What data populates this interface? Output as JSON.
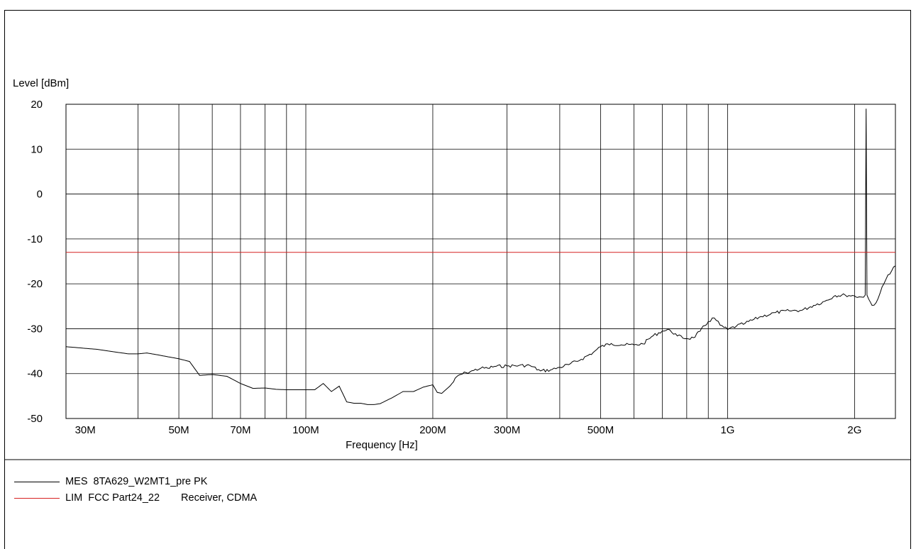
{
  "chart_data": {
    "type": "line",
    "ylabel": "Level [dBm]",
    "xlabel": "Frequency [Hz]",
    "x_scale": "log",
    "xlim_hz": [
      27000000,
      2500000000
    ],
    "ylim": [
      -50,
      20
    ],
    "y_ticks": [
      20,
      10,
      0,
      -10,
      -20,
      -30,
      -40,
      -50
    ],
    "y_tick_labels": [
      "20",
      "10",
      "0",
      "-10",
      "-20",
      "-30",
      "-40",
      "-50"
    ],
    "x_gridlines_hz": [
      40000000,
      50000000,
      60000000,
      70000000,
      80000000,
      90000000,
      100000000,
      200000000,
      300000000,
      400000000,
      500000000,
      600000000,
      700000000,
      800000000,
      900000000,
      1000000000,
      2000000000
    ],
    "x_tick_labels": [
      {
        "label": "30M",
        "hz": 30000000
      },
      {
        "label": "50M",
        "hz": 50000000
      },
      {
        "label": "70M",
        "hz": 70000000
      },
      {
        "label": "100M",
        "hz": 100000000
      },
      {
        "label": "200M",
        "hz": 200000000
      },
      {
        "label": "300M",
        "hz": 300000000
      },
      {
        "label": "500M",
        "hz": 500000000
      },
      {
        "label": "1G",
        "hz": 1000000000
      },
      {
        "label": "2G",
        "hz": 2000000000
      }
    ],
    "grid": true,
    "series": [
      {
        "name": "MES  8TA629_W2MT1_pre PK",
        "color": "#000000",
        "x_hz": [
          27000000,
          32000000,
          36000000,
          38000000,
          40000000,
          42000000,
          45000000,
          50000000,
          53000000,
          56000000,
          60000000,
          65000000,
          70000000,
          75000000,
          80000000,
          85000000,
          90000000,
          95000000,
          100000000,
          105000000,
          110000000,
          115000000,
          120000000,
          125000000,
          130000000,
          135000000,
          140000000,
          145000000,
          150000000,
          160000000,
          170000000,
          180000000,
          190000000,
          200000000,
          205000000,
          210000000,
          220000000,
          230000000,
          240000000,
          250000000,
          260000000,
          270000000,
          280000000,
          300000000,
          320000000,
          340000000,
          360000000,
          380000000,
          400000000,
          420000000,
          450000000,
          480000000,
          500000000,
          530000000,
          560000000,
          600000000,
          630000000,
          660000000,
          700000000,
          730000000,
          760000000,
          800000000,
          830000000,
          860000000,
          900000000,
          930000000,
          960000000,
          1000000000,
          1050000000,
          1100000000,
          1200000000,
          1300000000,
          1400000000,
          1500000000,
          1600000000,
          1700000000,
          1800000000,
          1900000000,
          2000000000,
          2050000000,
          2100000000,
          2120000000,
          2130000000,
          2140000000,
          2160000000,
          2200000000,
          2250000000,
          2300000000,
          2400000000,
          2500000000
        ],
        "y": [
          -34,
          -34.6,
          -35.3,
          -35.6,
          -35.6,
          -35.4,
          -35.9,
          -36.7,
          -37.3,
          -40.4,
          -40.2,
          -40.6,
          -42.2,
          -43.3,
          -43.2,
          -43.5,
          -43.6,
          -43.6,
          -43.6,
          -43.6,
          -42.2,
          -44.0,
          -42.8,
          -46.3,
          -46.6,
          -46.6,
          -46.9,
          -46.9,
          -46.7,
          -45.4,
          -44.0,
          -44.0,
          -43.0,
          -42.5,
          -44.2,
          -44.4,
          -42.7,
          -40.4,
          -39.8,
          -39.3,
          -38.8,
          -38.8,
          -38.4,
          -38.3,
          -38.2,
          -38.2,
          -39.4,
          -39.2,
          -38.6,
          -38.0,
          -36.8,
          -35.3,
          -34.0,
          -33.3,
          -33.6,
          -33.6,
          -33.4,
          -31.8,
          -30.5,
          -30.3,
          -31.6,
          -32.2,
          -32.0,
          -30.6,
          -28.4,
          -27.6,
          -29.2,
          -30.2,
          -29.4,
          -28.8,
          -27.3,
          -26.4,
          -26.0,
          -25.9,
          -24.8,
          -23.9,
          -22.6,
          -22.5,
          -22.7,
          -22.9,
          -23.0,
          -22.5,
          19.0,
          -22.5,
          -23.4,
          -24.8,
          -24.2,
          -22.0,
          -18.0,
          -16.0
        ]
      },
      {
        "name": "LIM  FCC Part24_22",
        "label_extra": "Receiver, CDMA",
        "color": "#d62020",
        "x_hz": [
          27000000,
          2500000000
        ],
        "y": [
          -13,
          -13
        ]
      }
    ],
    "legend_placement": "bottom-left"
  }
}
